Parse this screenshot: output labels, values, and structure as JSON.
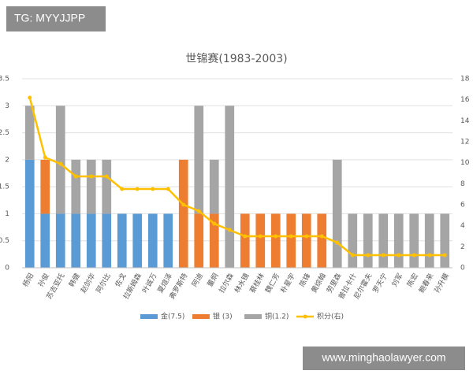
{
  "watermark_top": "TG: MYYJJPP",
  "watermark_bottom": "www.minghaolawyer.com",
  "chart_data": {
    "type": "bar-line",
    "title": "世锦赛(1983-2003)",
    "categories": [
      "杨阳",
      "孙俊",
      "苏吉亚托",
      "韩健",
      "赵剑华",
      "阿尔比",
      "佐戈",
      "拉斯姆森",
      "叶诚万",
      "夏煊泽",
      "弗罗斯特",
      "阿迪",
      "董炯",
      "拉尔森",
      "林水镜",
      "蔡桂林",
      "魏仁芳",
      "朴星宇",
      "陈锋",
      "黄综翰",
      "劳里森",
      "普拉卡什",
      "尼尔霍夫",
      "罗天宁",
      "刘军",
      "陈宏",
      "鲍春来",
      "孙升模"
    ],
    "series": [
      {
        "name": "金(7.5)",
        "color": "#5b9bd5",
        "values": [
          2,
          1,
          1,
          1,
          1,
          1,
          1,
          1,
          1,
          1,
          0,
          0,
          0,
          0,
          0,
          0,
          0,
          0,
          0,
          0,
          0,
          0,
          0,
          0,
          0,
          0,
          0,
          0
        ]
      },
      {
        "name": "银 (3)",
        "color": "#ed7d31",
        "values": [
          0,
          1,
          0,
          0,
          0,
          0,
          0,
          0,
          0,
          0,
          2,
          1,
          1,
          0,
          1,
          1,
          1,
          1,
          1,
          1,
          0,
          0,
          0,
          0,
          0,
          0,
          0,
          0
        ]
      },
      {
        "name": "铜(1.2)",
        "color": "#a5a5a5",
        "values": [
          1,
          0,
          2,
          1,
          1,
          1,
          0,
          0,
          0,
          0,
          0,
          2,
          1,
          3,
          0,
          0,
          0,
          0,
          0,
          0,
          2,
          1,
          1,
          1,
          1,
          1,
          1,
          1
        ]
      },
      {
        "name": "积分(右)",
        "color": "#ffc000",
        "axis": "y2",
        "values": [
          16.2,
          10.5,
          9.9,
          8.7,
          8.7,
          8.7,
          7.5,
          7.5,
          7.5,
          7.5,
          6,
          5.4,
          4.2,
          3.6,
          3,
          3,
          3,
          3,
          3,
          3,
          2.4,
          1.2,
          1.2,
          1.2,
          1.2,
          1.2,
          1.2,
          1.2
        ]
      }
    ],
    "ylim": [
      0,
      3.5
    ],
    "yticks": [
      0,
      0.5,
      1,
      1.5,
      2,
      2.5,
      3,
      3.5
    ],
    "y2lim": [
      0,
      18
    ],
    "y2ticks": [
      0,
      2,
      4,
      6,
      8,
      10,
      12,
      14,
      16,
      18
    ],
    "grid": true,
    "legend": "bottom"
  }
}
